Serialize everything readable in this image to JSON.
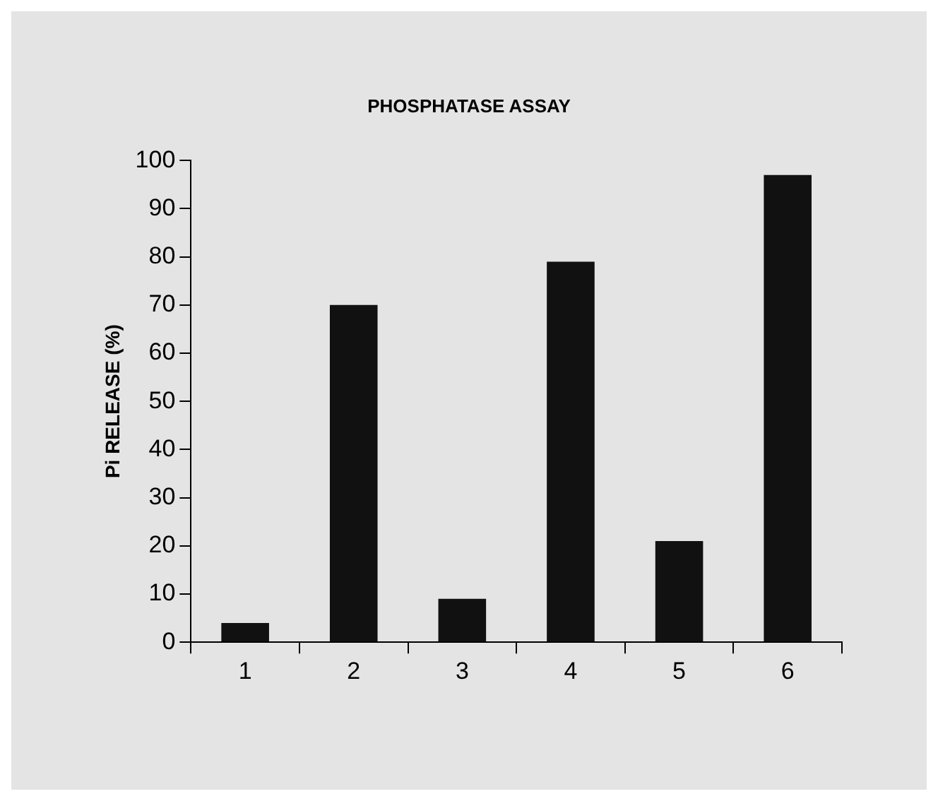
{
  "chart_data": {
    "type": "bar",
    "title": "PHOSPHATASE ASSAY",
    "ylabel": "Pi RELEASE (%)",
    "categories": [
      "1",
      "2",
      "3",
      "4",
      "5",
      "6"
    ],
    "values": [
      4,
      70,
      9,
      79,
      21,
      97
    ],
    "color": "#111111",
    "ylim": [
      0,
      100
    ],
    "yticks": [
      0,
      10,
      20,
      30,
      40,
      50,
      60,
      70,
      80,
      90,
      100
    ],
    "grid": false,
    "legend": false
  }
}
